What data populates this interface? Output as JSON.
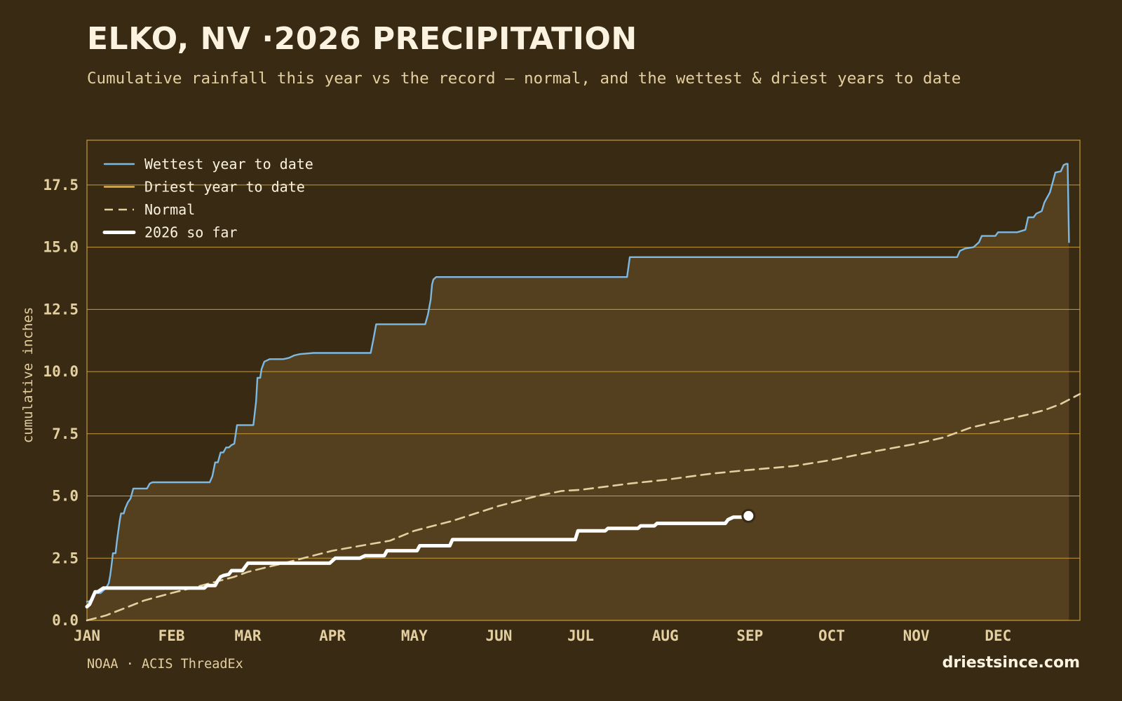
{
  "header": {
    "title": "ELKO, NV ·2026 PRECIPITATION",
    "subtitle": "Cumulative rainfall this year vs the record — normal, and the wettest & driest years to date"
  },
  "footer": {
    "source": "NOAA · ACIS ThreadEx",
    "brand": "driestsince.com"
  },
  "colors": {
    "background": "#382a13",
    "wettest": "#7cb9e3",
    "driest": "#e9b04a",
    "normal": "#e4cfa0",
    "current": "#ffffff",
    "grid": "#c89a3a",
    "fill": "#543f1e"
  },
  "chart_data": {
    "type": "line",
    "title": "ELKO, NV ·2026 PRECIPITATION",
    "xlabel": "",
    "ylabel": "cumulative inches",
    "ylim": [
      0,
      19.3
    ],
    "xlim_day_of_year": [
      1,
      365
    ],
    "y_ticks": [
      "0.0",
      "2.5",
      "5.0",
      "7.5",
      "10.0",
      "12.5",
      "15.0",
      "17.5"
    ],
    "x_ticks": [
      {
        "label": "JAN",
        "day": 1
      },
      {
        "label": "FEB",
        "day": 32
      },
      {
        "label": "MAR",
        "day": 60
      },
      {
        "label": "APR",
        "day": 91
      },
      {
        "label": "MAY",
        "day": 121
      },
      {
        "label": "JUN",
        "day": 152
      },
      {
        "label": "JUL",
        "day": 182
      },
      {
        "label": "AUG",
        "day": 213
      },
      {
        "label": "SEP",
        "day": 244
      },
      {
        "label": "OCT",
        "day": 274
      },
      {
        "label": "NOV",
        "day": 305
      },
      {
        "label": "DEC",
        "day": 335
      }
    ],
    "grid": "horizontal",
    "legend_position": "top-left",
    "series": [
      {
        "name": "Wettest year to date",
        "style": "solid",
        "color": "#7cb9e3",
        "points": [
          [
            1,
            0.75
          ],
          [
            3,
            0.8
          ],
          [
            4,
            1.1
          ],
          [
            6,
            1.1
          ],
          [
            8,
            1.3
          ],
          [
            9,
            1.5
          ],
          [
            9.5,
            1.8
          ],
          [
            10,
            2.2
          ],
          [
            10.5,
            2.7
          ],
          [
            11.5,
            2.7
          ],
          [
            12,
            3.2
          ],
          [
            13,
            4.0
          ],
          [
            13.5,
            4.3
          ],
          [
            14.5,
            4.3
          ],
          [
            15,
            4.5
          ],
          [
            16,
            4.75
          ],
          [
            17,
            4.9
          ],
          [
            18,
            5.3
          ],
          [
            21,
            5.3
          ],
          [
            23,
            5.3
          ],
          [
            24,
            5.5
          ],
          [
            25,
            5.55
          ],
          [
            46,
            5.55
          ],
          [
            47,
            5.8
          ],
          [
            48,
            6.35
          ],
          [
            49,
            6.35
          ],
          [
            50,
            6.75
          ],
          [
            51,
            6.75
          ],
          [
            52,
            6.95
          ],
          [
            53,
            6.95
          ],
          [
            54,
            7.05
          ],
          [
            55,
            7.1
          ],
          [
            56,
            7.85
          ],
          [
            62,
            7.85
          ],
          [
            63,
            8.8
          ],
          [
            63.5,
            9.75
          ],
          [
            64.5,
            9.75
          ],
          [
            65,
            10.1
          ],
          [
            66,
            10.4
          ],
          [
            68,
            10.5
          ],
          [
            73,
            10.5
          ],
          [
            75,
            10.55
          ],
          [
            77,
            10.65
          ],
          [
            79,
            10.7
          ],
          [
            84,
            10.75
          ],
          [
            105,
            10.75
          ],
          [
            106,
            11.3
          ],
          [
            107,
            11.9
          ],
          [
            125,
            11.9
          ],
          [
            126,
            12.3
          ],
          [
            127,
            12.9
          ],
          [
            127.5,
            13.5
          ],
          [
            128,
            13.7
          ],
          [
            129,
            13.8
          ],
          [
            199,
            13.8
          ],
          [
            200,
            14.6
          ],
          [
            320,
            14.6
          ],
          [
            321,
            14.85
          ],
          [
            323,
            14.95
          ],
          [
            326,
            15.0
          ],
          [
            328,
            15.2
          ],
          [
            329,
            15.45
          ],
          [
            334,
            15.45
          ],
          [
            335,
            15.6
          ],
          [
            342,
            15.6
          ],
          [
            345,
            15.7
          ],
          [
            346,
            16.2
          ],
          [
            348,
            16.2
          ],
          [
            349,
            16.35
          ],
          [
            351,
            16.45
          ],
          [
            352,
            16.8
          ],
          [
            354,
            17.2
          ],
          [
            355,
            17.6
          ],
          [
            356,
            18.0
          ],
          [
            358,
            18.05
          ],
          [
            359,
            18.3
          ],
          [
            360,
            18.35
          ],
          [
            360.5,
            18.35
          ],
          [
            361,
            15.2
          ]
        ]
      },
      {
        "name": "Driest year to date",
        "style": "solid",
        "color": "#e9b04a",
        "points": []
      },
      {
        "name": "Normal",
        "style": "dashed",
        "color": "#e4cfa0",
        "points": [
          [
            1,
            0.0
          ],
          [
            8,
            0.2
          ],
          [
            15,
            0.5
          ],
          [
            22,
            0.8
          ],
          [
            32,
            1.1
          ],
          [
            43,
            1.4
          ],
          [
            55,
            1.75
          ],
          [
            60,
            1.95
          ],
          [
            75,
            2.35
          ],
          [
            91,
            2.8
          ],
          [
            104,
            3.05
          ],
          [
            112,
            3.2
          ],
          [
            121,
            3.6
          ],
          [
            135,
            4.0
          ],
          [
            152,
            4.6
          ],
          [
            166,
            5.0
          ],
          [
            175,
            5.2
          ],
          [
            182,
            5.25
          ],
          [
            200,
            5.5
          ],
          [
            213,
            5.65
          ],
          [
            230,
            5.9
          ],
          [
            244,
            6.05
          ],
          [
            260,
            6.2
          ],
          [
            274,
            6.45
          ],
          [
            290,
            6.8
          ],
          [
            305,
            7.1
          ],
          [
            315,
            7.35
          ],
          [
            325,
            7.75
          ],
          [
            335,
            8.0
          ],
          [
            345,
            8.25
          ],
          [
            352,
            8.45
          ],
          [
            358,
            8.7
          ],
          [
            365,
            9.1
          ]
        ]
      },
      {
        "name": "2026 so far",
        "style": "thick",
        "color": "#ffffff",
        "points": [
          [
            1,
            0.55
          ],
          [
            2,
            0.65
          ],
          [
            4,
            1.15
          ],
          [
            5,
            1.15
          ],
          [
            7,
            1.3
          ],
          [
            44,
            1.3
          ],
          [
            45,
            1.4
          ],
          [
            48,
            1.4
          ],
          [
            49,
            1.6
          ],
          [
            50,
            1.75
          ],
          [
            51,
            1.8
          ],
          [
            53,
            1.85
          ],
          [
            54,
            2.0
          ],
          [
            58,
            2.0
          ],
          [
            59,
            2.15
          ],
          [
            60,
            2.3
          ],
          [
            90,
            2.3
          ],
          [
            92,
            2.5
          ],
          [
            101,
            2.5
          ],
          [
            103,
            2.6
          ],
          [
            110,
            2.6
          ],
          [
            111,
            2.8
          ],
          [
            122,
            2.8
          ],
          [
            123,
            3.0
          ],
          [
            134,
            3.0
          ],
          [
            135,
            3.25
          ],
          [
            180,
            3.25
          ],
          [
            181,
            3.6
          ],
          [
            191,
            3.6
          ],
          [
            192,
            3.7
          ],
          [
            203,
            3.7
          ],
          [
            204,
            3.8
          ],
          [
            209,
            3.8
          ],
          [
            210,
            3.9
          ],
          [
            235,
            3.9
          ],
          [
            236,
            4.05
          ],
          [
            238,
            4.15
          ],
          [
            242,
            4.15
          ],
          [
            243.5,
            4.2
          ]
        ]
      }
    ],
    "current_value": 4.2
  }
}
